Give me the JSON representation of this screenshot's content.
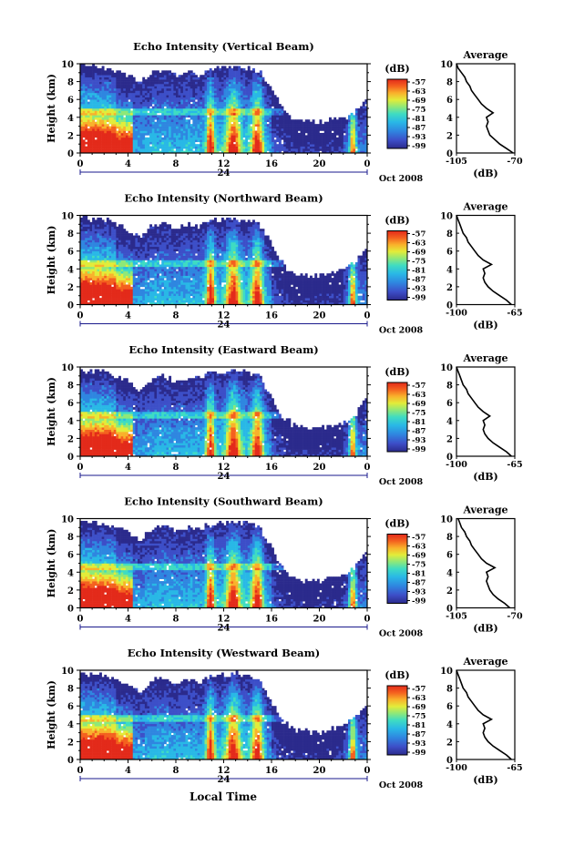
{
  "colorbar": {
    "unit": "(dB)",
    "ticks": [
      "-57",
      "-63",
      "-69",
      "-75",
      "-81",
      "-87",
      "-93",
      "-99"
    ],
    "range": [
      -102,
      -54
    ],
    "colors": [
      "#2b2a8c",
      "#3d4fc8",
      "#2f86e0",
      "#29b8e6",
      "#3fdcc2",
      "#8ee879",
      "#e2ec3a",
      "#f9b12b",
      "#f4611f",
      "#e32a1a"
    ]
  },
  "common": {
    "ylabel": "Height (km)",
    "y_ticks": [
      "0",
      "2",
      "4",
      "6",
      "8",
      "10"
    ],
    "x_ticks": [
      "0",
      "4",
      "8",
      "12",
      "16",
      "20",
      "0"
    ],
    "day_label": "24",
    "month_label": "Oct 2008",
    "xlabel": "Local Time",
    "avg_title": "Average",
    "avg_xlabel": "(dB)",
    "avg_y_ticks": [
      "0",
      "2",
      "4",
      "6",
      "8",
      "10"
    ]
  },
  "chart_data": [
    {
      "type": "heatmap",
      "title": "Echo Intensity (Vertical Beam)",
      "x_range_hours": [
        0,
        24
      ],
      "y_range_km": [
        0,
        10
      ],
      "cloud_top_km_by_hour": [
        9.8,
        9.8,
        9.6,
        9.2,
        8.8,
        8.0,
        9.0,
        9.3,
        8.7,
        9.0,
        8.9,
        9.4,
        9.5,
        9.7,
        9.6,
        9.2,
        7.2,
        4.8,
        3.6,
        3.6,
        3.4,
        3.8,
        3.9,
        4.5,
        6.0
      ],
      "average_profile": {
        "x_range": [
          -105,
          -70
        ],
        "x_tick_labels": [
          "-105",
          "-70"
        ],
        "height_km": [
          0,
          0.5,
          1,
          1.5,
          2,
          2.5,
          3,
          3.5,
          4,
          4.5,
          5,
          5.5,
          6,
          6.5,
          7,
          7.5,
          8,
          8.5,
          9,
          9.5,
          10
        ],
        "db": [
          -71,
          -75,
          -79,
          -82,
          -85,
          -86,
          -87,
          -86,
          -87,
          -83,
          -87,
          -90,
          -92,
          -94,
          -96,
          -97,
          -99,
          -100,
          -102,
          -104,
          -105
        ]
      }
    },
    {
      "type": "heatmap",
      "title": "Echo Intensity (Northward Beam)",
      "x_range_hours": [
        0,
        24
      ],
      "y_range_km": [
        0,
        10
      ],
      "cloud_top_km_by_hour": [
        9.6,
        9.6,
        9.6,
        9.0,
        8.4,
        7.4,
        8.8,
        9.2,
        8.6,
        9.0,
        8.8,
        9.4,
        9.5,
        9.6,
        9.5,
        9.0,
        6.8,
        4.4,
        3.4,
        3.4,
        3.2,
        3.6,
        3.8,
        4.8,
        6.5
      ],
      "average_profile": {
        "x_range": [
          -100,
          -65
        ],
        "x_tick_labels": [
          "-100",
          "-65"
        ],
        "height_km": [
          0,
          0.5,
          1,
          1.5,
          2,
          2.5,
          3,
          3.5,
          4,
          4.5,
          5,
          5.5,
          6,
          6.5,
          7,
          7.5,
          8,
          8.5,
          9,
          9.5,
          10
        ],
        "db": [
          -67,
          -70,
          -74,
          -78,
          -81,
          -83,
          -84,
          -83,
          -84,
          -79,
          -84,
          -87,
          -89,
          -91,
          -93,
          -94,
          -96,
          -97,
          -98,
          -99,
          -100
        ]
      }
    },
    {
      "type": "heatmap",
      "title": "Echo Intensity (Eastward Beam)",
      "x_range_hours": [
        0,
        24
      ],
      "y_range_km": [
        0,
        10
      ],
      "cloud_top_km_by_hour": [
        9.6,
        9.6,
        9.4,
        9.0,
        8.4,
        7.2,
        8.6,
        9.0,
        8.4,
        8.8,
        8.8,
        9.3,
        9.4,
        9.6,
        9.5,
        9.0,
        6.5,
        4.3,
        3.4,
        3.3,
        3.1,
        3.5,
        3.8,
        4.6,
        6.8
      ],
      "average_profile": {
        "x_range": [
          -100,
          -65
        ],
        "x_tick_labels": [
          "-100",
          "-65"
        ],
        "height_km": [
          0,
          0.5,
          1,
          1.5,
          2,
          2.5,
          3,
          3.5,
          4,
          4.5,
          5,
          5.5,
          6,
          6.5,
          7,
          7.5,
          8,
          8.5,
          9,
          9.5,
          10
        ],
        "db": [
          -67,
          -70,
          -74,
          -78,
          -81,
          -83,
          -84,
          -83,
          -84,
          -80,
          -84,
          -87,
          -89,
          -91,
          -93,
          -94,
          -96,
          -97,
          -98,
          -99,
          -100
        ]
      }
    },
    {
      "type": "heatmap",
      "title": "Echo Intensity (Southward Beam)",
      "x_range_hours": [
        0,
        24
      ],
      "y_range_km": [
        0,
        10
      ],
      "cloud_top_km_by_hour": [
        9.6,
        9.6,
        9.4,
        9.0,
        8.6,
        7.6,
        8.8,
        9.2,
        8.6,
        9.0,
        8.8,
        9.4,
        9.5,
        9.6,
        9.5,
        9.0,
        6.8,
        4.4,
        3.2,
        3.0,
        3.0,
        3.4,
        3.6,
        4.4,
        6.6
      ],
      "average_profile": {
        "x_range": [
          -105,
          -70
        ],
        "x_tick_labels": [
          "-105",
          "-70"
        ],
        "height_km": [
          0,
          0.5,
          1,
          1.5,
          2,
          2.5,
          3,
          3.5,
          4,
          4.5,
          5,
          5.5,
          6,
          6.5,
          7,
          7.5,
          8,
          8.5,
          9,
          9.5,
          10
        ],
        "db": [
          -73,
          -76,
          -80,
          -83,
          -85,
          -86,
          -87,
          -86,
          -87,
          -82,
          -87,
          -90,
          -92,
          -94,
          -96,
          -97,
          -99,
          -100,
          -102,
          -103,
          -104
        ]
      }
    },
    {
      "type": "heatmap",
      "title": "Echo Intensity (Westward Beam)",
      "x_range_hours": [
        0,
        24
      ],
      "y_range_km": [
        0,
        10
      ],
      "cloud_top_km_by_hour": [
        9.6,
        9.6,
        9.4,
        9.0,
        8.4,
        7.4,
        8.8,
        9.2,
        8.6,
        9.0,
        8.8,
        9.4,
        9.5,
        9.6,
        9.5,
        9.0,
        6.6,
        4.2,
        3.3,
        3.2,
        3.0,
        3.4,
        3.8,
        4.6,
        6.4
      ],
      "average_profile": {
        "x_range": [
          -100,
          -65
        ],
        "x_tick_labels": [
          "-100",
          "-65"
        ],
        "height_km": [
          0,
          0.5,
          1,
          1.5,
          2,
          2.5,
          3,
          3.5,
          4,
          4.5,
          5,
          5.5,
          6,
          6.5,
          7,
          7.5,
          8,
          8.5,
          9,
          9.5,
          10
        ],
        "db": [
          -67,
          -70,
          -74,
          -78,
          -81,
          -83,
          -84,
          -83,
          -84,
          -79,
          -84,
          -87,
          -89,
          -91,
          -93,
          -94,
          -96,
          -97,
          -98,
          -99,
          -100
        ]
      }
    }
  ]
}
